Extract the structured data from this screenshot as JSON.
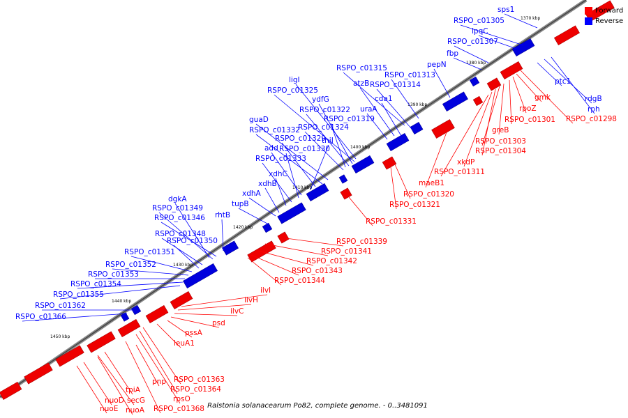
{
  "legend": {
    "forward_label": "Forward",
    "reverse_label": "Reverse",
    "forward_color": "#ff0000",
    "reverse_color": "#0000ff"
  },
  "caption": "Ralstonia solanacearum Po82, complete genome. - 0..3481091",
  "scale_ticks": [
    "1370 kbp",
    "1380 kbp",
    "1390 kbp",
    "1400 kbp",
    "1410 kbp",
    "1420 kbp",
    "1430 kbp",
    "1440 kbp",
    "1450 kbp"
  ],
  "reverse_genes": [
    "sps1",
    "RSPO_c01305",
    "lpqC",
    "RSPO_c01307",
    "fbp",
    "pepN",
    "RSPO_c01313",
    "RSPO_c01315",
    "RSPO_c01314",
    "atzB",
    "cda1",
    "uraA",
    "ligI",
    "RSPO_c01325",
    "ydfG",
    "RSPO_c01322",
    "RSPO_c01319",
    "RSPO_c01324",
    "guaD",
    "RSPO_c01332",
    "RSPO_c01329",
    "thiJ",
    "add",
    "RSPO_c01330",
    "RSPO_c01333",
    "xdhC",
    "xdhB",
    "xdhA",
    "tupB",
    "dgkA",
    "RSPO_c01349",
    "RSPO_c01346",
    "rhtB",
    "RSPO_c01348",
    "RSPO_c01350",
    "RSPO_c01351",
    "RSPO_c01352",
    "RSPO_c01353",
    "RSPO_c01354",
    "RSPO_c01355",
    "RSPO_c01362",
    "RSPO_c01366",
    "ptc1",
    "rdgB",
    "rph"
  ],
  "forward_genes": [
    "RSPO_c01298",
    "gmk",
    "rpoZ",
    "RSPO_c01301",
    "greB",
    "RSPO_c01303",
    "RSPO_c01304",
    "xkdP",
    "RSPO_c01311",
    "maeB1",
    "RSPO_c01320",
    "RSPO_c01321",
    "RSPO_c01331",
    "RSPO_c01339",
    "RSPO_c01341",
    "RSPO_c01342",
    "RSPO_c01343",
    "RSPO_c01344",
    "ilvI",
    "ilvH",
    "ilvC",
    "psd",
    "pssA",
    "leuA1",
    "RSPO_c01363",
    "RSPO_c01364",
    "rpsO",
    "RSPO_c01368",
    "pnp",
    "secG",
    "tpiA",
    "nuoA",
    "nuoD",
    "nuoE"
  ]
}
